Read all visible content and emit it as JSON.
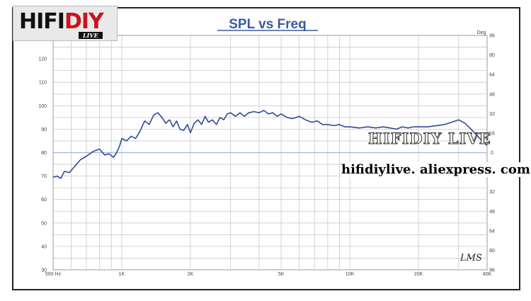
{
  "logo": {
    "part1": "HIFI",
    "part2": "DIY",
    "badge": "LIVE"
  },
  "watermark": {
    "line1": "HIFIDIY LIVE",
    "line2": "hifidiylive. aliexpress. com"
  },
  "signature": "LMS",
  "colors": {
    "curve": "#2e4a9a",
    "title": "#3a5a9e",
    "grid": "#c8c8c8",
    "zero_line": "#9fb4dd",
    "tick_label": "#444444"
  },
  "chart_data": {
    "type": "line",
    "title": "SPL vs Freq",
    "x_scale": "log",
    "xlim": [
      500,
      40000
    ],
    "ylim": [
      30,
      130
    ],
    "y2_label": "Deg",
    "y2lim": [
      -96,
      96
    ],
    "x_ticks": [
      500,
      1000,
      2000,
      5000,
      10000,
      20000,
      40000
    ],
    "x_tick_labels": [
      "500 Hz",
      "1K",
      "2K",
      "5K",
      "10K",
      "20K",
      "40K"
    ],
    "y_ticks": [
      30,
      40,
      50,
      60,
      70,
      80,
      90,
      100,
      110,
      120
    ],
    "y_tick_labels": [
      "30",
      "40",
      "50",
      "60",
      "70",
      "80",
      "90",
      "100",
      "110",
      "120"
    ],
    "y2_ticks": [
      96,
      80,
      64,
      48,
      32,
      16,
      0,
      -16,
      -32,
      -48,
      -64,
      -80,
      -96
    ],
    "y2_tick_labels": [
      "96",
      "80",
      "64",
      "48",
      "32",
      "16",
      "0",
      "16",
      "32",
      "48",
      "64",
      "80",
      "96"
    ],
    "grid": true,
    "series": [
      {
        "x": [
          500,
          520,
          540,
          560,
          590,
          620,
          660,
          700,
          750,
          800,
          840,
          880,
          920,
          950,
          980,
          1000,
          1050,
          1100,
          1150,
          1200,
          1260,
          1320,
          1380,
          1440,
          1500,
          1560,
          1620,
          1680,
          1740,
          1800,
          1870,
          1940,
          2000,
          2080,
          2160,
          2240,
          2320,
          2400,
          2500,
          2600,
          2700,
          2800,
          2900,
          3000,
          3150,
          3300,
          3450,
          3600,
          3800,
          4000,
          4200,
          4400,
          4600,
          4800,
          5000,
          5300,
          5600,
          6000,
          6400,
          6800,
          7200,
          7600,
          8000,
          8500,
          9000,
          9500,
          10000,
          11000,
          12000,
          13000,
          14000,
          15000,
          16000,
          17000,
          18000,
          19000,
          20000,
          22000,
          24000,
          26000,
          28000,
          30000,
          32000,
          34000,
          36000,
          38000,
          40000
        ],
        "y": [
          69.5,
          70,
          69,
          72,
          71.5,
          74,
          77,
          78.5,
          80.5,
          81.5,
          79,
          79.5,
          78,
          80,
          83,
          86,
          85,
          87,
          86,
          89,
          93.5,
          92,
          96,
          97,
          95,
          92.5,
          94,
          91,
          93.5,
          90,
          89.5,
          92,
          88.5,
          92.5,
          94,
          92,
          95.5,
          93,
          94,
          92,
          95,
          94,
          96.5,
          97,
          95.5,
          97,
          95.5,
          97,
          97.5,
          97,
          98,
          96.5,
          97,
          95.5,
          96.5,
          95,
          94.5,
          95.5,
          94,
          93,
          93.5,
          92,
          92,
          91.5,
          92,
          91,
          91,
          90.5,
          91,
          90.5,
          91,
          90.5,
          90,
          91,
          90.5,
          91,
          91,
          91,
          91.5,
          92,
          93,
          94,
          92.5,
          90,
          87.5,
          85,
          83
        ]
      }
    ]
  }
}
